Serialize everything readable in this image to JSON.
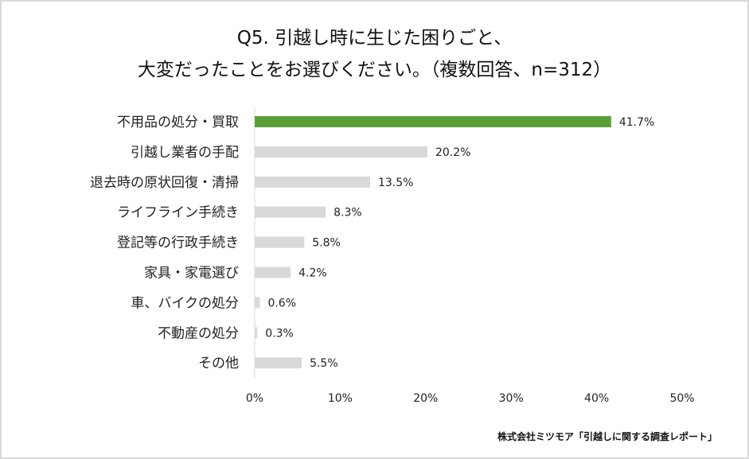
{
  "chart_data": {
    "type": "bar",
    "orientation": "horizontal",
    "title_lines": [
      "Q5.  引越し時に生じた困りごと、",
      "大変だったことをお選びください。（複数回答、n=312）"
    ],
    "categories": [
      "不用品の処分・買取",
      "引越し業者の手配",
      "退去時の原状回復・清掃",
      "ライフライン手続き",
      "登記等の行政手続き",
      "家具・家電選び",
      "車、バイクの処分",
      "不動産の処分",
      "その他"
    ],
    "values": [
      41.7,
      20.2,
      13.5,
      8.3,
      5.8,
      4.2,
      0.6,
      0.3,
      5.5
    ],
    "data_labels": [
      "41.7%",
      "20.2%",
      "13.5%",
      "8.3%",
      "5.8%",
      "4.2%",
      "0.6%",
      "0.3%",
      "5.5%"
    ],
    "xlim": [
      0,
      50
    ],
    "ticks": [
      "0%",
      "10%",
      "20%",
      "30%",
      "40%",
      "50%"
    ],
    "tick_values": [
      0,
      10,
      20,
      30,
      40,
      50
    ],
    "grid": false,
    "colors": {
      "highlight": "#5a9e3a",
      "default": "#d9d9d9"
    }
  },
  "source": "株式会社ミツモア「引越しに関する調査レポート」"
}
